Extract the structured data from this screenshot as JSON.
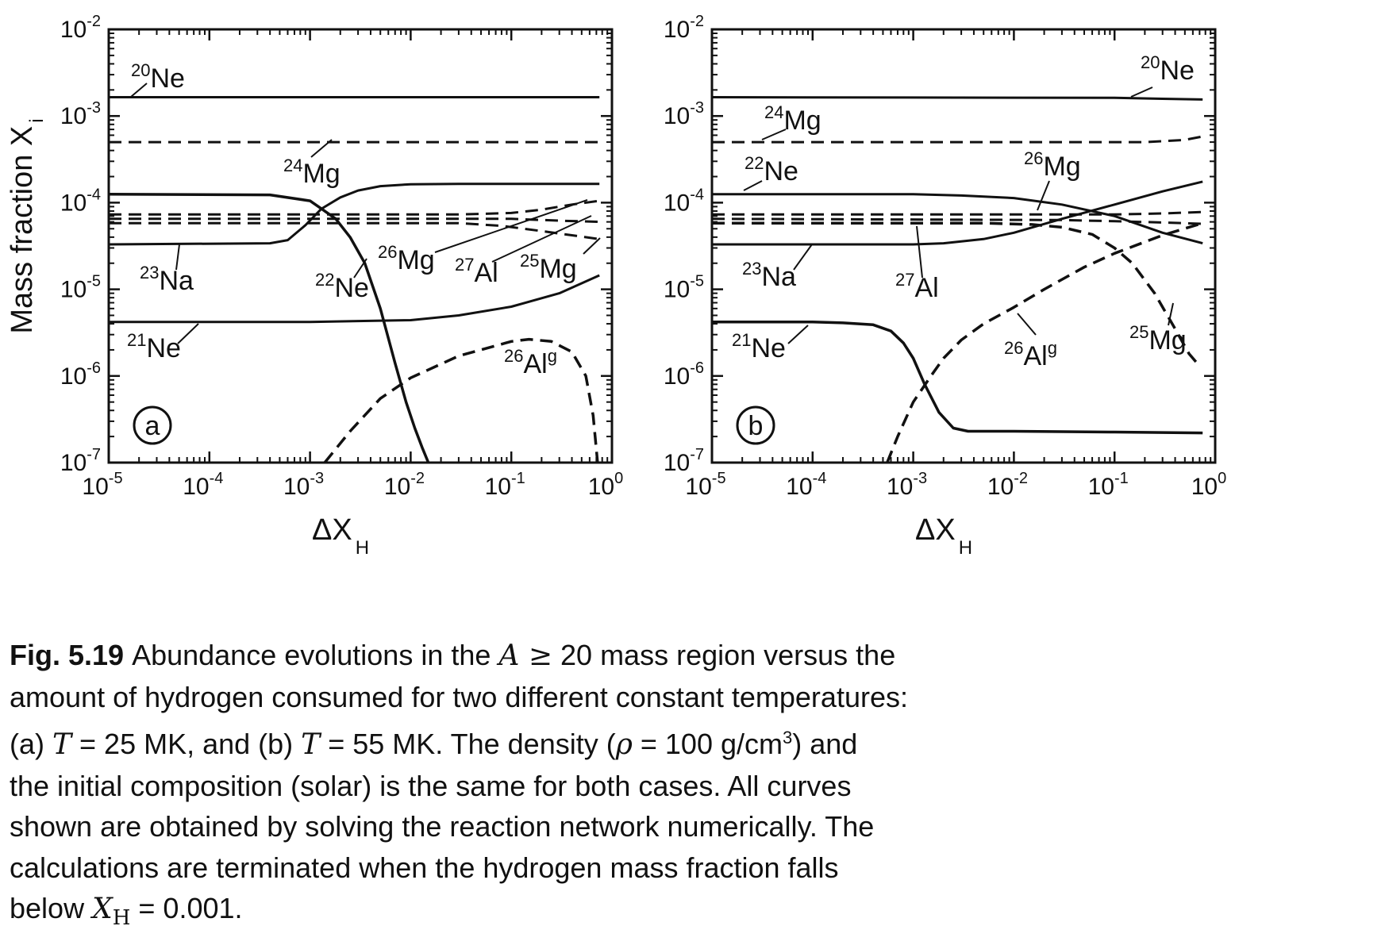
{
  "chart_data": [
    {
      "panel_label": "a",
      "type": "line",
      "xscale": "log",
      "yscale": "log",
      "xlim": [
        1e-05,
        1.0
      ],
      "ylim": [
        1e-07,
        0.01
      ],
      "xlabel": "ΔX",
      "xlabel_sub": "H",
      "ylabel": "Mass fraction X",
      "ylabel_sub": "i",
      "x_tick_labels": [
        [
          "10",
          "-5"
        ],
        [
          "10",
          "-4"
        ],
        [
          "10",
          "-3"
        ],
        [
          "10",
          "-2"
        ],
        [
          "10",
          "-1"
        ],
        [
          "10",
          "0"
        ]
      ],
      "y_tick_labels": [
        [
          "10",
          "-2"
        ],
        [
          "10",
          "-3"
        ],
        [
          "10",
          "-4"
        ],
        [
          "10",
          "-5"
        ],
        [
          "10",
          "-6"
        ],
        [
          "10",
          "-7"
        ]
      ],
      "series": [
        {
          "name": "20Ne",
          "sup": "20",
          "el": "Ne",
          "style": "solid",
          "width": 3,
          "x": [
            1e-05,
            0.75
          ],
          "y": [
            0.00165,
            0.00165
          ]
        },
        {
          "name": "24Mg",
          "sup": "24",
          "el": "Mg",
          "style": "dashed",
          "width": 3,
          "x": [
            1e-05,
            0.75
          ],
          "y": [
            0.0005,
            0.0005
          ]
        },
        {
          "name": "22Ne",
          "sup": "22",
          "el": "Ne",
          "style": "solid",
          "width": 3.5,
          "x": [
            1e-05,
            0.0004,
            0.001,
            0.0013,
            0.0018,
            0.0025,
            0.0035,
            0.005,
            0.007,
            0.009,
            0.011,
            0.013,
            0.015
          ],
          "y": [
            0.000125,
            0.000123,
            0.000105,
            8.5e-05,
            6.5e-05,
            4e-05,
            2e-05,
            6e-06,
            1.4e-06,
            5e-07,
            2.5e-07,
            1.5e-07,
            1e-07
          ]
        },
        {
          "name": "23Na",
          "sup": "23",
          "el": "Na",
          "style": "solid",
          "width": 3,
          "x": [
            1e-05,
            0.0004,
            0.0006,
            0.0009,
            0.0013,
            0.002,
            0.003,
            0.005,
            0.01,
            0.03,
            0.1,
            0.75
          ],
          "y": [
            3.3e-05,
            3.4e-05,
            3.7e-05,
            5.5e-05,
            8.5e-05,
            0.000115,
            0.000138,
            0.000155,
            0.000163,
            0.000165,
            0.000165,
            0.000165
          ]
        },
        {
          "name": "26Mg",
          "sup": "26",
          "el": "Mg",
          "style": "dashed",
          "width": 3,
          "x": [
            1e-05,
            0.03,
            0.1,
            0.2,
            0.4,
            0.75
          ],
          "y": [
            7.3e-05,
            7.3e-05,
            7.6e-05,
            8.3e-05,
            9.5e-05,
            0.000105
          ]
        },
        {
          "name": "27Al",
          "sup": "27",
          "el": "Al",
          "style": "dashed",
          "width": 3,
          "x": [
            1e-05,
            0.03,
            0.1,
            0.3,
            0.75
          ],
          "y": [
            6.5e-05,
            6.5e-05,
            6.5e-05,
            6.2e-05,
            6e-05
          ]
        },
        {
          "name": "25Mg",
          "sup": "25",
          "el": "Mg",
          "style": "dashed",
          "width": 3,
          "x": [
            1e-05,
            0.03,
            0.08,
            0.2,
            0.4,
            0.75
          ],
          "y": [
            5.8e-05,
            5.8e-05,
            5.4e-05,
            4.7e-05,
            4.2e-05,
            3.8e-05
          ]
        },
        {
          "name": "21Ne",
          "sup": "21",
          "el": "Ne",
          "style": "solid",
          "width": 3,
          "x": [
            1e-05,
            0.001,
            0.003,
            0.01,
            0.03,
            0.1,
            0.3,
            0.75
          ],
          "y": [
            4.2e-06,
            4.2e-06,
            4.3e-06,
            4.4e-06,
            5e-06,
            6.3e-06,
            9e-06,
            1.45e-05
          ]
        },
        {
          "name": "26Alg",
          "sup": "26",
          "el": "Al",
          "elsup": "g",
          "style": "dashed",
          "width": 3.5,
          "x": [
            0.0014,
            0.0025,
            0.005,
            0.01,
            0.03,
            0.1,
            0.15,
            0.25,
            0.4,
            0.55,
            0.65,
            0.72
          ],
          "y": [
            1e-07,
            2.3e-07,
            5.5e-07,
            9.5e-07,
            1.7e-06,
            2.5e-06,
            2.65e-06,
            2.5e-06,
            1.9e-06,
            1e-06,
            3.5e-07,
            1e-07
          ]
        }
      ]
    },
    {
      "panel_label": "b",
      "type": "line",
      "xscale": "log",
      "yscale": "log",
      "xlim": [
        1e-05,
        1.0
      ],
      "ylim": [
        1e-07,
        0.01
      ],
      "xlabel": "ΔX",
      "xlabel_sub": "H",
      "ylabel": "",
      "x_tick_labels": [
        [
          "10",
          "-5"
        ],
        [
          "10",
          "-4"
        ],
        [
          "10",
          "-3"
        ],
        [
          "10",
          "-2"
        ],
        [
          "10",
          "-1"
        ],
        [
          "10",
          "0"
        ]
      ],
      "y_tick_labels": [
        [
          "10",
          "-2"
        ],
        [
          "10",
          "-3"
        ],
        [
          "10",
          "-4"
        ],
        [
          "10",
          "-5"
        ],
        [
          "10",
          "-6"
        ],
        [
          "10",
          "-7"
        ]
      ],
      "series": [
        {
          "name": "20Ne",
          "sup": "20",
          "el": "Ne",
          "style": "solid",
          "width": 3,
          "x": [
            1e-05,
            0.1,
            0.3,
            0.75
          ],
          "y": [
            0.00165,
            0.00162,
            0.00158,
            0.00155
          ]
        },
        {
          "name": "24Mg",
          "sup": "24",
          "el": "Mg",
          "style": "dashed",
          "width": 3,
          "x": [
            1e-05,
            0.05,
            0.2,
            0.5,
            0.75
          ],
          "y": [
            0.0005,
            0.0005,
            0.0005,
            0.00053,
            0.00058
          ]
        },
        {
          "name": "22Ne",
          "sup": "22",
          "el": "Ne",
          "style": "solid",
          "width": 3,
          "x": [
            1e-05,
            0.001,
            0.003,
            0.01,
            0.03,
            0.1,
            0.3,
            0.75
          ],
          "y": [
            0.000125,
            0.000125,
            0.000121,
            0.000113,
            9.5e-05,
            7e-05,
            4.5e-05,
            3.4e-05
          ]
        },
        {
          "name": "23Na",
          "sup": "23",
          "el": "Na",
          "style": "solid",
          "width": 3,
          "x": [
            1e-05,
            0.001,
            0.002,
            0.005,
            0.01,
            0.03,
            0.1,
            0.3,
            0.75
          ],
          "y": [
            3.3e-05,
            3.3e-05,
            3.4e-05,
            3.8e-05,
            4.5e-05,
            6.5e-05,
            9.5e-05,
            0.000135,
            0.000175
          ]
        },
        {
          "name": "26Mg",
          "sup": "26",
          "el": "Mg",
          "style": "dashed",
          "width": 3,
          "x": [
            1e-05,
            0.03,
            0.1,
            0.3,
            0.75
          ],
          "y": [
            7.3e-05,
            7.3e-05,
            7.3e-05,
            7.5e-05,
            7.8e-05
          ]
        },
        {
          "name": "27Al",
          "sup": "27",
          "el": "Al",
          "style": "dashed",
          "width": 3,
          "x": [
            1e-05,
            0.03,
            0.1,
            0.3,
            0.75
          ],
          "y": [
            6.5e-05,
            6.3e-05,
            6.1e-05,
            5.9e-05,
            5.7e-05
          ]
        },
        {
          "name": "25Mg",
          "sup": "25",
          "el": "Mg",
          "style": "dashed",
          "width": 3.5,
          "x": [
            1e-05,
            0.005,
            0.015,
            0.03,
            0.06,
            0.1,
            0.15,
            0.25,
            0.4,
            0.55,
            0.7
          ],
          "y": [
            5.8e-05,
            5.8e-05,
            5.6e-05,
            5.2e-05,
            4.3e-05,
            3e-05,
            2e-05,
            9e-06,
            3.5e-06,
            1.8e-06,
            1.3e-06
          ]
        },
        {
          "name": "21Ne",
          "sup": "21",
          "el": "Ne",
          "style": "solid",
          "width": 3.5,
          "x": [
            1e-05,
            0.0001,
            0.0002,
            0.0004,
            0.0006,
            0.0008,
            0.001,
            0.0013,
            0.0018,
            0.0025,
            0.0035,
            0.005,
            0.01,
            0.1,
            0.75
          ],
          "y": [
            4.2e-06,
            4.2e-06,
            4.1e-06,
            3.9e-06,
            3.3e-06,
            2.4e-06,
            1.6e-06,
            8e-07,
            3.8e-07,
            2.5e-07,
            2.3e-07,
            2.3e-07,
            2.3e-07,
            2.25e-07,
            2.2e-07
          ]
        },
        {
          "name": "26Alg",
          "sup": "26",
          "el": "Al",
          "elsup": "g",
          "style": "dashed",
          "width": 3.5,
          "x": [
            0.00055,
            0.0007,
            0.001,
            0.0015,
            0.002,
            0.003,
            0.005,
            0.01,
            0.02,
            0.05,
            0.1,
            0.3,
            0.75
          ],
          "y": [
            1e-07,
            2e-07,
            5e-07,
            1e-06,
            1.6e-06,
            2.6e-06,
            4e-06,
            6.2e-06,
            1e-05,
            1.8e-05,
            2.6e-05,
            4.2e-05,
            5.8e-05
          ]
        }
      ]
    }
  ],
  "caption": {
    "fig_label": "Fig. 5.19",
    "line1_pre": "Abundance evolutions in the ",
    "line1_math": "A ≥",
    "line1_post": " 20 mass region versus the",
    "line2": "amount of hydrogen consumed for two different constant temperatures:",
    "line3_a": "(a) ",
    "line3_T1": "T",
    "line3_b": " = 25 MK, and (b) ",
    "line3_T2": "T",
    "line3_c": " = 55 MK. The density (",
    "line3_rho": "ρ",
    "line3_d": " = 100 g/cm",
    "line3_sup": "3",
    "line3_e": ") and",
    "line4": "the initial composition (solar) is the same for both cases. All curves",
    "line5": "shown are obtained by solving the reaction network numerically. The",
    "line6": "calculations are terminated when the hydrogen mass fraction falls",
    "line7_pre": "below ",
    "line7_X": "X",
    "line7_H": "H",
    "line7_post": " = 0.001."
  }
}
